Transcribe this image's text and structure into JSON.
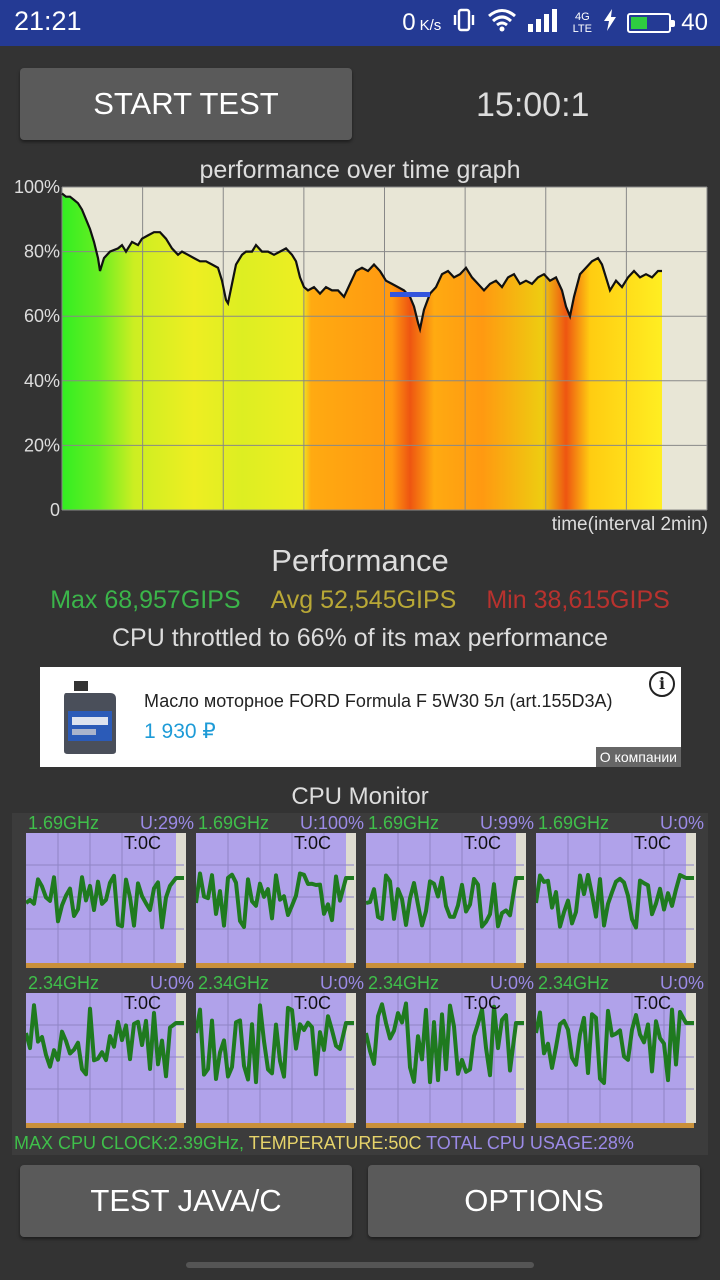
{
  "status_bar": {
    "time": "21:21",
    "net_speed": "0",
    "net_unit": "K/s",
    "network_type": "4G LTE",
    "battery_level": "40",
    "icons": [
      "vibrate-icon",
      "wifi-icon",
      "signal-icon",
      "charging-icon",
      "battery-icon"
    ]
  },
  "controls": {
    "start_test_label": "START TEST",
    "timer": "15:00:1"
  },
  "graph": {
    "title": "performance over time graph",
    "xlabel": "time(interval 2min)"
  },
  "chart_data": {
    "type": "line",
    "title": "performance over time graph",
    "xlabel": "time(interval 2min)",
    "ylabel": "",
    "y_ticks": [
      "100%",
      "80%",
      "60%",
      "40%",
      "20%",
      "0"
    ],
    "ylim": [
      0,
      100
    ],
    "xlim": [
      0,
      15
    ],
    "grid": true,
    "series": [
      {
        "values": [
          [
            0,
            98
          ],
          [
            0.1,
            97
          ],
          [
            0.2,
            97
          ],
          [
            0.3,
            96
          ],
          [
            0.4,
            95
          ],
          [
            0.5,
            93
          ],
          [
            0.6,
            90
          ],
          [
            0.7,
            87
          ],
          [
            0.8,
            83
          ],
          [
            0.9,
            78
          ],
          [
            0.95,
            74
          ],
          [
            1.05,
            78
          ],
          [
            1.2,
            80
          ],
          [
            1.4,
            81
          ],
          [
            1.5,
            82
          ],
          [
            1.6,
            80
          ],
          [
            1.75,
            83
          ],
          [
            1.9,
            82
          ],
          [
            2.0,
            84
          ],
          [
            2.15,
            85
          ],
          [
            2.3,
            86
          ],
          [
            2.45,
            86
          ],
          [
            2.6,
            84
          ],
          [
            2.75,
            81
          ],
          [
            2.9,
            79
          ],
          [
            3.0,
            80
          ],
          [
            3.15,
            79
          ],
          [
            3.3,
            78
          ],
          [
            3.45,
            77
          ],
          [
            3.6,
            77
          ],
          [
            3.75,
            76
          ],
          [
            3.9,
            75
          ],
          [
            4.0,
            71
          ],
          [
            4.1,
            65
          ],
          [
            4.15,
            64
          ],
          [
            4.25,
            70
          ],
          [
            4.35,
            76
          ],
          [
            4.5,
            79
          ],
          [
            4.6,
            80
          ],
          [
            4.75,
            80
          ],
          [
            4.85,
            82
          ],
          [
            5.0,
            80
          ],
          [
            5.15,
            80
          ],
          [
            5.3,
            79
          ],
          [
            5.45,
            80
          ],
          [
            5.6,
            81
          ],
          [
            5.75,
            79
          ],
          [
            5.85,
            77
          ],
          [
            5.95,
            72
          ],
          [
            6.05,
            69
          ],
          [
            6.15,
            68
          ],
          [
            6.3,
            69
          ],
          [
            6.45,
            67
          ],
          [
            6.6,
            69
          ],
          [
            6.75,
            68
          ],
          [
            6.9,
            68
          ],
          [
            7.05,
            66
          ],
          [
            7.2,
            70
          ],
          [
            7.35,
            74
          ],
          [
            7.5,
            75
          ],
          [
            7.65,
            74
          ],
          [
            7.8,
            76
          ],
          [
            7.95,
            74
          ],
          [
            8.1,
            71
          ],
          [
            8.25,
            70
          ],
          [
            8.4,
            69
          ],
          [
            8.55,
            68
          ],
          [
            8.7,
            66
          ],
          [
            8.8,
            63
          ],
          [
            8.9,
            58
          ],
          [
            8.95,
            56
          ],
          [
            9.05,
            62
          ],
          [
            9.2,
            67
          ],
          [
            9.35,
            69
          ],
          [
            9.5,
            73
          ],
          [
            9.65,
            74
          ],
          [
            9.8,
            72
          ],
          [
            9.95,
            73
          ],
          [
            10.1,
            75
          ],
          [
            10.25,
            72
          ],
          [
            10.4,
            70
          ],
          [
            10.55,
            68
          ],
          [
            10.7,
            70
          ],
          [
            10.85,
            71
          ],
          [
            11.0,
            69
          ],
          [
            11.15,
            72
          ],
          [
            11.3,
            73
          ],
          [
            11.45,
            70
          ],
          [
            11.6,
            71
          ],
          [
            11.75,
            70
          ],
          [
            11.9,
            72
          ],
          [
            12.05,
            73
          ],
          [
            12.2,
            71
          ],
          [
            12.35,
            72
          ],
          [
            12.5,
            68
          ],
          [
            12.6,
            63
          ],
          [
            12.7,
            60
          ],
          [
            12.8,
            66
          ],
          [
            12.95,
            73
          ],
          [
            13.1,
            75
          ],
          [
            13.25,
            77
          ],
          [
            13.4,
            78
          ],
          [
            13.5,
            76
          ],
          [
            13.6,
            72
          ],
          [
            13.7,
            68
          ],
          [
            13.85,
            71
          ],
          [
            14.0,
            69
          ],
          [
            14.15,
            72
          ],
          [
            14.3,
            74
          ],
          [
            14.45,
            72
          ],
          [
            14.6,
            73
          ],
          [
            14.75,
            72
          ],
          [
            14.9,
            74
          ],
          [
            15.0,
            74
          ]
        ]
      }
    ],
    "annotations": [
      "blue marker near 9 min at ~67%"
    ]
  },
  "performance": {
    "title": "Performance",
    "max": "Max 68,957GIPS",
    "avg": "Avg 52,545GIPS",
    "min": "Min 38,615GIPS",
    "throttle_text": "CPU throttled to 66% of its max performance"
  },
  "ad": {
    "text": "Масло моторное FORD Formula F 5W30 5л (art.155D3A)",
    "price": "1 930 ₽",
    "info_symbol": "i",
    "company_label": "О компании"
  },
  "cpu_monitor": {
    "title": "CPU Monitor",
    "cores": [
      {
        "freq": "1.69GHz",
        "usage": "U:29%",
        "temp": "T:0C"
      },
      {
        "freq": "1.69GHz",
        "usage": "U:100%",
        "temp": "T:0C"
      },
      {
        "freq": "1.69GHz",
        "usage": "U:99%",
        "temp": "T:0C"
      },
      {
        "freq": "1.69GHz",
        "usage": "U:0%",
        "temp": "T:0C"
      },
      {
        "freq": "2.34GHz",
        "usage": "U:0%",
        "temp": "T:0C"
      },
      {
        "freq": "2.34GHz",
        "usage": "U:0%",
        "temp": "T:0C"
      },
      {
        "freq": "2.34GHz",
        "usage": "U:0%",
        "temp": "T:0C"
      },
      {
        "freq": "2.34GHz",
        "usage": "U:0%",
        "temp": "T:0C"
      }
    ],
    "max_clock": "MAX CPU CLOCK:2.39GHz,",
    "temperature": "TEMPERATURE:50C",
    "total_usage": "TOTAL CPU USAGE:28%"
  },
  "bottom": {
    "test_java_label": "TEST JAVA/C",
    "options_label": "OPTIONS"
  }
}
